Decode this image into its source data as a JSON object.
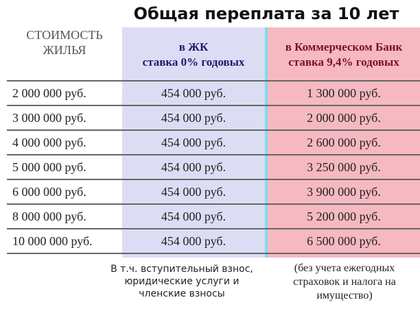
{
  "title": "Общая переплата за 10 лет",
  "table": {
    "header": [
      {
        "lines": [
          "СТОИМОСТЬ",
          "ЖИЛЬЯ"
        ]
      },
      {
        "lines": [
          "в ЖК",
          "ставка 0% годовых"
        ]
      },
      {
        "lines": [
          "в Коммерческом Банк",
          "ставка 9,4% годовых"
        ]
      }
    ],
    "rows": [
      [
        "2 000 000 руб.",
        "454 000 руб.",
        "1 300 000 руб."
      ],
      [
        "3 000 000 руб.",
        "454 000 руб.",
        "2 000 000 руб."
      ],
      [
        "4 000 000 руб.",
        "454 000 руб.",
        "2 600 000 руб."
      ],
      [
        "5 000 000 руб.",
        "454 000 руб.",
        "3 250 000 руб."
      ],
      [
        "6 000 000 руб.",
        "454 000 руб.",
        "3 900 000 руб."
      ],
      [
        "8 000 000 руб.",
        "454 000 руб.",
        "5 200 000 руб."
      ],
      [
        "10 000 000 руб.",
        "454 000 руб.",
        "6 500 000 руб."
      ]
    ]
  },
  "notes": [
    {
      "lines": [
        "В т.ч. вступительный взнос,",
        "юридические услуги и",
        "членские взносы"
      ]
    },
    {
      "lines": [
        "(без учета ежегодных",
        "страховок и налога на",
        "имущество)"
      ]
    }
  ]
}
